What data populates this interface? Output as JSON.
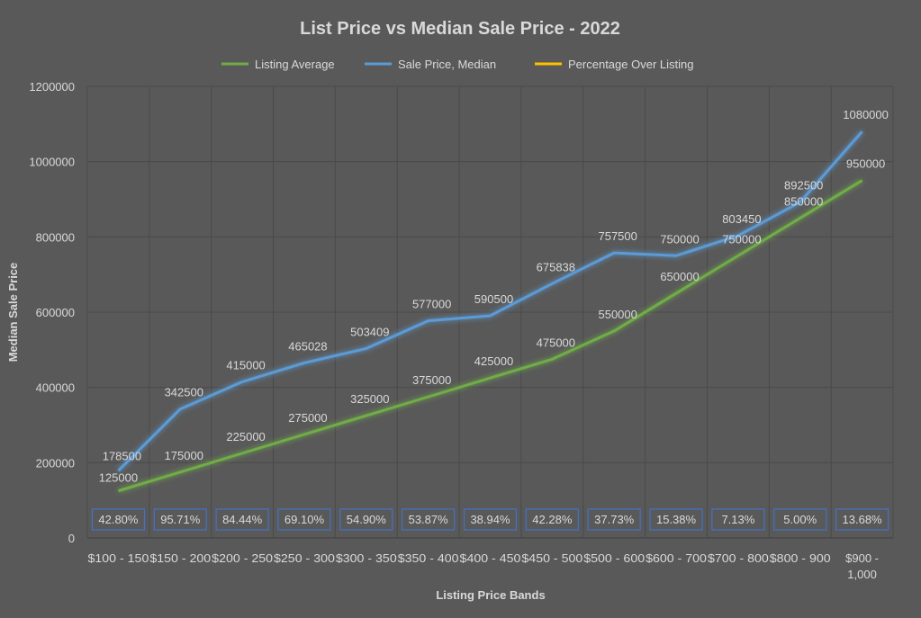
{
  "chart_data": {
    "type": "line",
    "title": "List Price vs Median Sale Price - 2022",
    "xlabel": "Listing Price Bands",
    "ylabel": "Median Sale Price",
    "ylim": [
      0,
      1200000
    ],
    "yticks": [
      "0",
      "200000",
      "400000",
      "600000",
      "800000",
      "1000000",
      "1200000"
    ],
    "grid": true,
    "legend_position": "top",
    "categories": [
      "$100 - 150",
      "$150 - 200",
      "$200 - 250",
      "$250 - 300",
      "$300 - 350",
      "$350 - 400",
      "$400 - 450",
      "$450 - 500",
      "$500 - 600",
      "$600 - 700",
      "$700 - 800",
      "$800 - 900",
      "$900 - 1,000"
    ],
    "series": [
      {
        "name": "Listing Average",
        "color": "#70ad47",
        "values": [
          125000,
          175000,
          225000,
          275000,
          325000,
          375000,
          425000,
          475000,
          550000,
          650000,
          750000,
          850000,
          950000
        ]
      },
      {
        "name": "Sale Price, Median",
        "color": "#5b9bd5",
        "values": [
          178500,
          342500,
          415000,
          465028,
          503409,
          577000,
          590500,
          675838,
          757500,
          750000,
          803450,
          892500,
          1080000
        ]
      },
      {
        "name": "Percentage Over Listing",
        "color": "#ffc000",
        "values": [
          0.428,
          0.9571,
          0.8444,
          0.691,
          0.549,
          0.5387,
          0.3894,
          0.4228,
          0.3773,
          0.1538,
          0.0713,
          0.05,
          0.1368
        ],
        "labels": [
          "42.80%",
          "95.71%",
          "84.44%",
          "69.10%",
          "54.90%",
          "53.87%",
          "38.94%",
          "42.28%",
          "37.73%",
          "15.38%",
          "7.13%",
          "5.00%",
          "13.68%"
        ]
      }
    ]
  }
}
